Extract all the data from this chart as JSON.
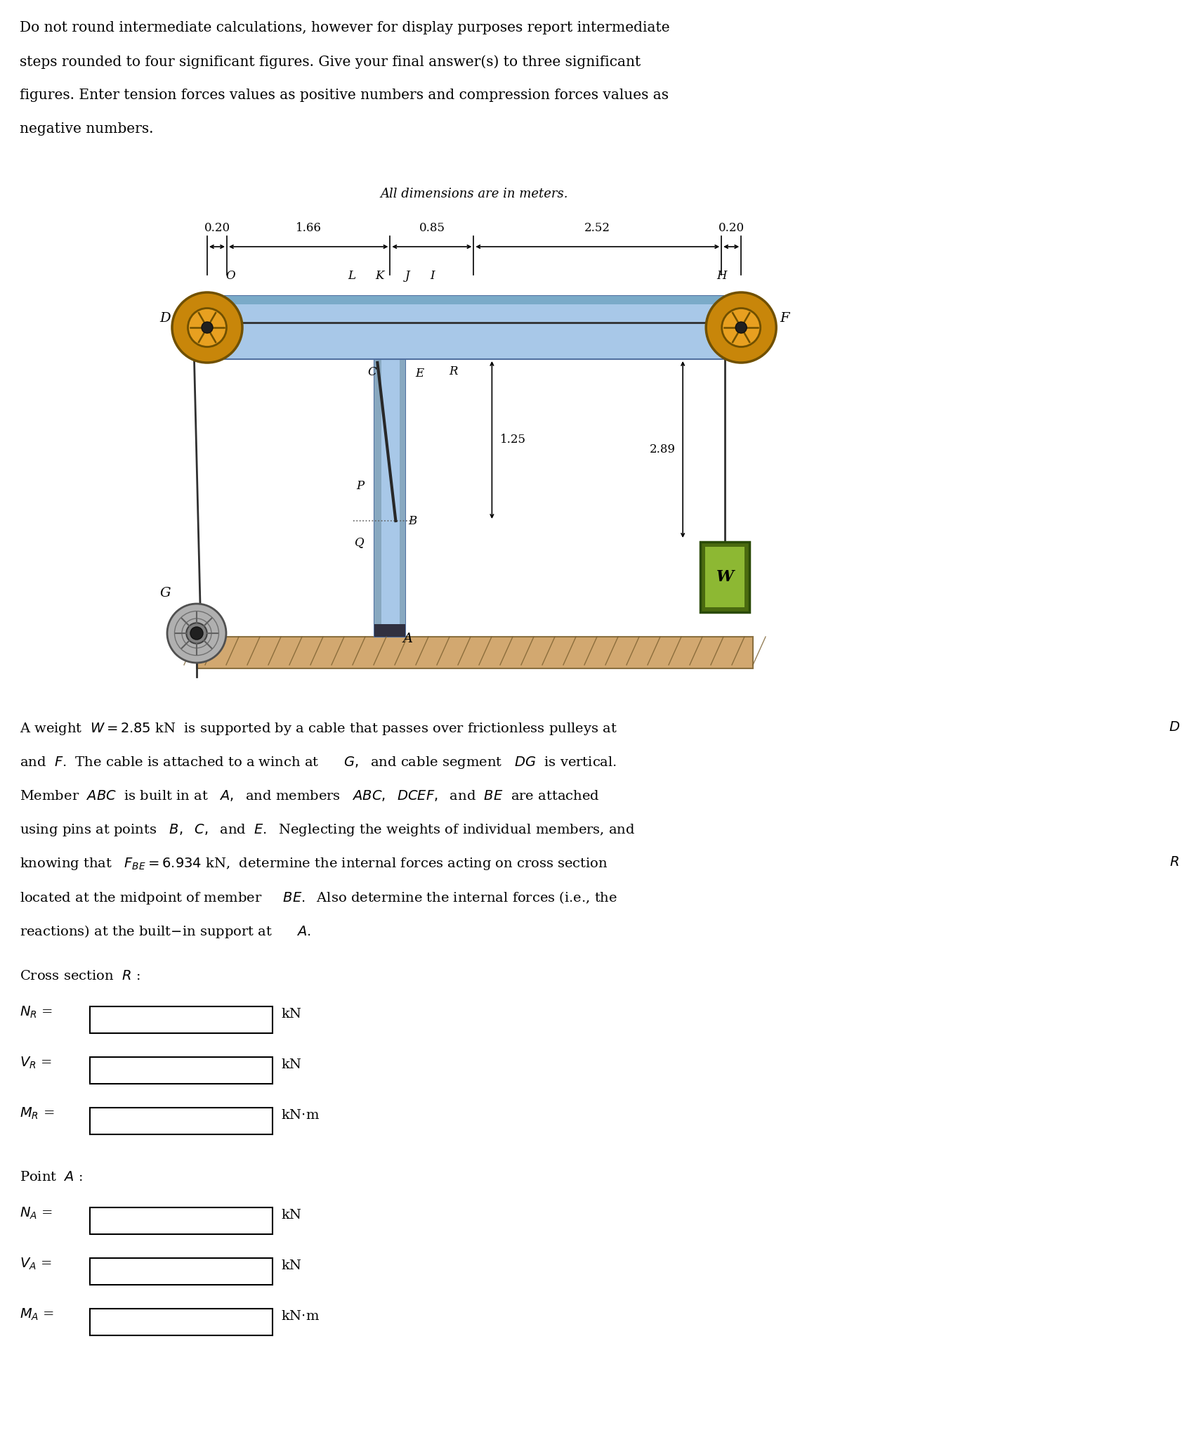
{
  "bg_color": "#ffffff",
  "pulley_color": "#C8860A",
  "pulley_inner_color": "#E8A020",
  "beam_color": "#A8C8E8",
  "beam_shade_color": "#7AAAC8",
  "weight_outer_color": "#4A6A10",
  "weight_inner_color": "#8DB833",
  "ground_color": "#D2A870",
  "cable_color": "#303030",
  "winch_outer": "#B0B0B0",
  "winch_inner": "#909090",
  "dims": [
    "0.20",
    "1.66",
    "0.85",
    "2.52",
    "0.20"
  ],
  "dim_meters": [
    0.2,
    1.66,
    0.85,
    2.52,
    0.2
  ],
  "dim_label": "All dimensions are in meters."
}
